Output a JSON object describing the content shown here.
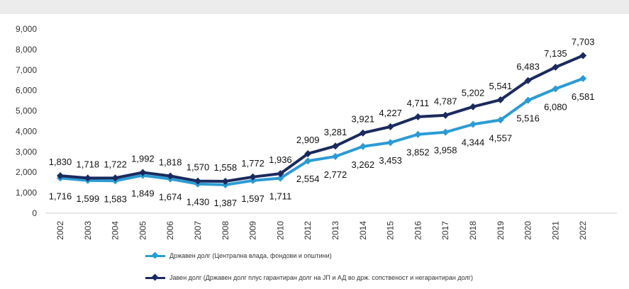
{
  "chart_data": {
    "type": "line",
    "title": "",
    "xlabel": "",
    "ylabel": "",
    "ylim": [
      0,
      9000
    ],
    "yticks": [
      "0",
      "1,000",
      "2,000",
      "3,000",
      "4,000",
      "5,000",
      "6,000",
      "7,000",
      "8,000",
      "9,000"
    ],
    "categories": [
      "2002",
      "2003",
      "2004",
      "2005",
      "2006",
      "2007",
      "2008",
      "2009",
      "2010",
      "2012",
      "2013",
      "2014",
      "2015",
      "2016",
      "2017",
      "2018",
      "2019",
      "2020",
      "2021",
      "2022"
    ],
    "grid": false,
    "legend_position": "bottom-left",
    "series": [
      {
        "name": "Државен долг (Централна влада, фондови и општини)",
        "color": "#2c9bd3",
        "values": [
          1716,
          1599,
          1583,
          1849,
          1674,
          1430,
          1387,
          1597,
          1711,
          2554,
          2772,
          3262,
          3453,
          3852,
          3958,
          4344,
          4557,
          5516,
          6080,
          6581
        ],
        "labels": [
          "1,716",
          "1,599",
          "1,583",
          "1,849",
          "1,674",
          "1,430",
          "1,387",
          "1,597",
          "1,711",
          "2,554",
          "2,772",
          "3,262",
          "3,453",
          "3,852",
          "3,958",
          "4,344",
          "4,557",
          "5,516",
          "6,080",
          "6,581"
        ]
      },
      {
        "name": "Јавен долг (Државен долг плус гарантиран долг на ЈП и АД во држ. сопственост и негарантиран долг)",
        "color": "#1b2a5e",
        "values": [
          1830,
          1718,
          1722,
          1992,
          1818,
          1570,
          1558,
          1772,
          1936,
          2909,
          3281,
          3921,
          4227,
          4711,
          4787,
          5202,
          5541,
          6483,
          7135,
          7703
        ],
        "labels": [
          "1,830",
          "1,718",
          "1,722",
          "1,992",
          "1,818",
          "1,570",
          "1,558",
          "1,772",
          "1,936",
          "2,909",
          "3,281",
          "3,921",
          "4,227",
          "4,711",
          "4,787",
          "5,202",
          "5,541",
          "6,483",
          "7,135",
          "7,703"
        ]
      }
    ]
  }
}
